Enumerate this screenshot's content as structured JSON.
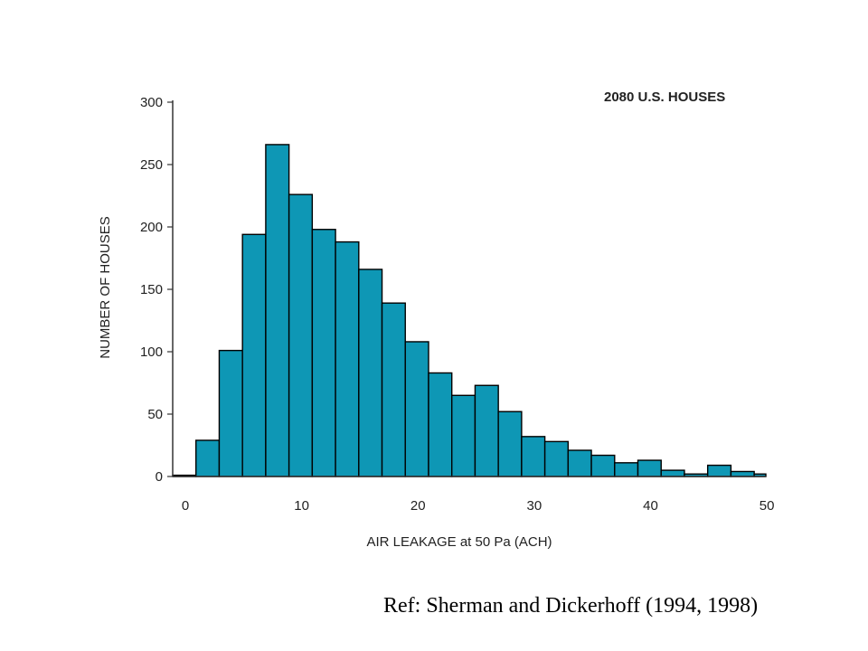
{
  "chart_data": {
    "type": "bar",
    "title": "",
    "annotation": "2080 U.S. HOUSES",
    "xlabel": "AIR LEAKAGE at 50 Pa (ACH)",
    "ylabel": "NUMBER OF HOUSES",
    "xlim": [
      0,
      51
    ],
    "ylim": [
      0,
      300
    ],
    "bin_width": 2,
    "bin_starts": [
      0,
      2,
      4,
      6,
      8,
      10,
      12,
      14,
      16,
      18,
      20,
      22,
      24,
      26,
      28,
      30,
      32,
      34,
      36,
      38,
      40,
      42,
      44,
      46,
      48,
      50
    ],
    "values": [
      1,
      29,
      101,
      194,
      266,
      226,
      198,
      188,
      166,
      139,
      108,
      83,
      65,
      73,
      52,
      32,
      28,
      21,
      17,
      11,
      13,
      5,
      2,
      9,
      4,
      2
    ],
    "x_ticks": [
      0,
      10,
      20,
      30,
      40,
      50
    ],
    "y_ticks": [
      0,
      50,
      100,
      150,
      200,
      250,
      300
    ],
    "grid": false,
    "colors": {
      "bar_fill": "#0E97B5",
      "bar_edge": "#000000",
      "axis": "#333333"
    }
  },
  "caption": "Ref: Sherman and Dickerhoff (1994, 1998)"
}
